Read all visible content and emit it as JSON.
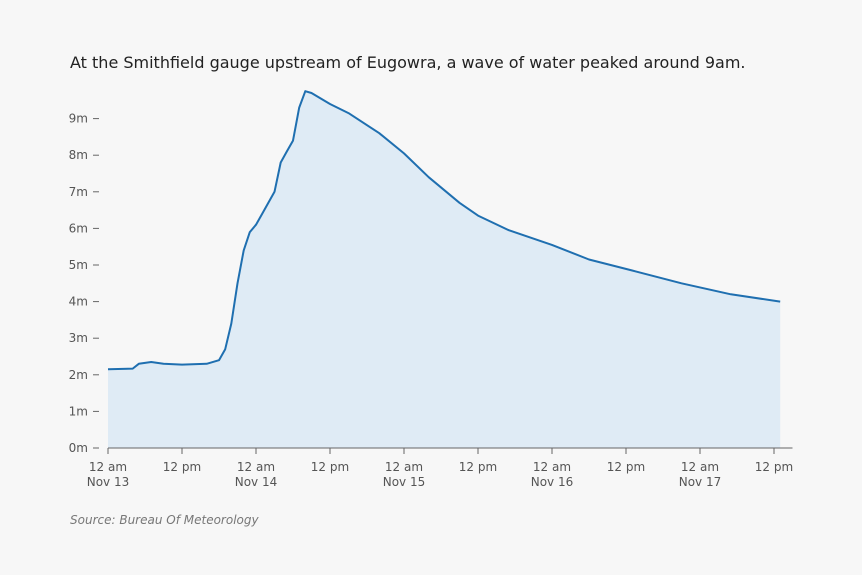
{
  "chart_data": {
    "type": "area",
    "title": "At the Smithfield gauge upstream of Eugowra, a wave of water peaked around 9am.",
    "source": "Source: Bureau Of Meteorology",
    "x": [
      "Nov 13 00:00",
      "Nov 13 04:00",
      "Nov 13 05:00",
      "Nov 13 07:00",
      "Nov 13 09:00",
      "Nov 13 12:00",
      "Nov 13 16:00",
      "Nov 13 18:00",
      "Nov 13 19:00",
      "Nov 13 20:00",
      "Nov 13 21:00",
      "Nov 13 22:00",
      "Nov 13 23:00",
      "Nov 14 00:00",
      "Nov 14 01:00",
      "Nov 14 03:00",
      "Nov 14 04:00",
      "Nov 14 05:00",
      "Nov 14 06:00",
      "Nov 14 07:00",
      "Nov 14 08:00",
      "Nov 14 09:00",
      "Nov 14 12:00",
      "Nov 14 15:00",
      "Nov 14 20:00",
      "Nov 15 00:00",
      "Nov 15 04:00",
      "Nov 15 09:00",
      "Nov 15 12:00",
      "Nov 15 17:00",
      "Nov 16 00:00",
      "Nov 16 06:00",
      "Nov 16 13:00",
      "Nov 16 21:00",
      "Nov 17 05:00",
      "Nov 17 13:00"
    ],
    "values": [
      2.15,
      2.17,
      2.3,
      2.35,
      2.3,
      2.28,
      2.3,
      2.4,
      2.7,
      3.4,
      4.5,
      5.4,
      5.9,
      6.1,
      6.4,
      7.0,
      7.8,
      8.1,
      8.4,
      9.3,
      9.75,
      9.7,
      9.4,
      9.15,
      8.6,
      8.05,
      7.4,
      6.7,
      6.35,
      5.95,
      5.55,
      5.15,
      4.85,
      4.5,
      4.2,
      4.0
    ],
    "color": "#1f6fb0",
    "fill_color": "#dfebf5",
    "xlim": [
      "Nov 13 00:00",
      "Nov 17 15:00"
    ],
    "xticks": [
      {
        "value": "Nov 13 00:00",
        "label": "12 am\nNov 13"
      },
      {
        "value": "Nov 13 12:00",
        "label": "12 pm"
      },
      {
        "value": "Nov 14 00:00",
        "label": "12 am\nNov 14"
      },
      {
        "value": "Nov 14 12:00",
        "label": "12 pm"
      },
      {
        "value": "Nov 15 00:00",
        "label": "12 am\nNov 15"
      },
      {
        "value": "Nov 15 12:00",
        "label": "12 pm"
      },
      {
        "value": "Nov 16 00:00",
        "label": "12 am\nNov 16"
      },
      {
        "value": "Nov 16 12:00",
        "label": "12 pm"
      },
      {
        "value": "Nov 17 00:00",
        "label": "12 am\nNov 17"
      },
      {
        "value": "Nov 17 12:00",
        "label": "12 pm"
      }
    ],
    "ylim": [
      0,
      10
    ],
    "yticks": [
      {
        "value": 0,
        "label": "0m"
      },
      {
        "value": 1,
        "label": "1m"
      },
      {
        "value": 2,
        "label": "2m"
      },
      {
        "value": 3,
        "label": "3m"
      },
      {
        "value": 4,
        "label": "4m"
      },
      {
        "value": 5,
        "label": "5m"
      },
      {
        "value": 6,
        "label": "6m"
      },
      {
        "value": 7,
        "label": "7m"
      },
      {
        "value": 8,
        "label": "8m"
      },
      {
        "value": 9,
        "label": "9m"
      }
    ]
  }
}
